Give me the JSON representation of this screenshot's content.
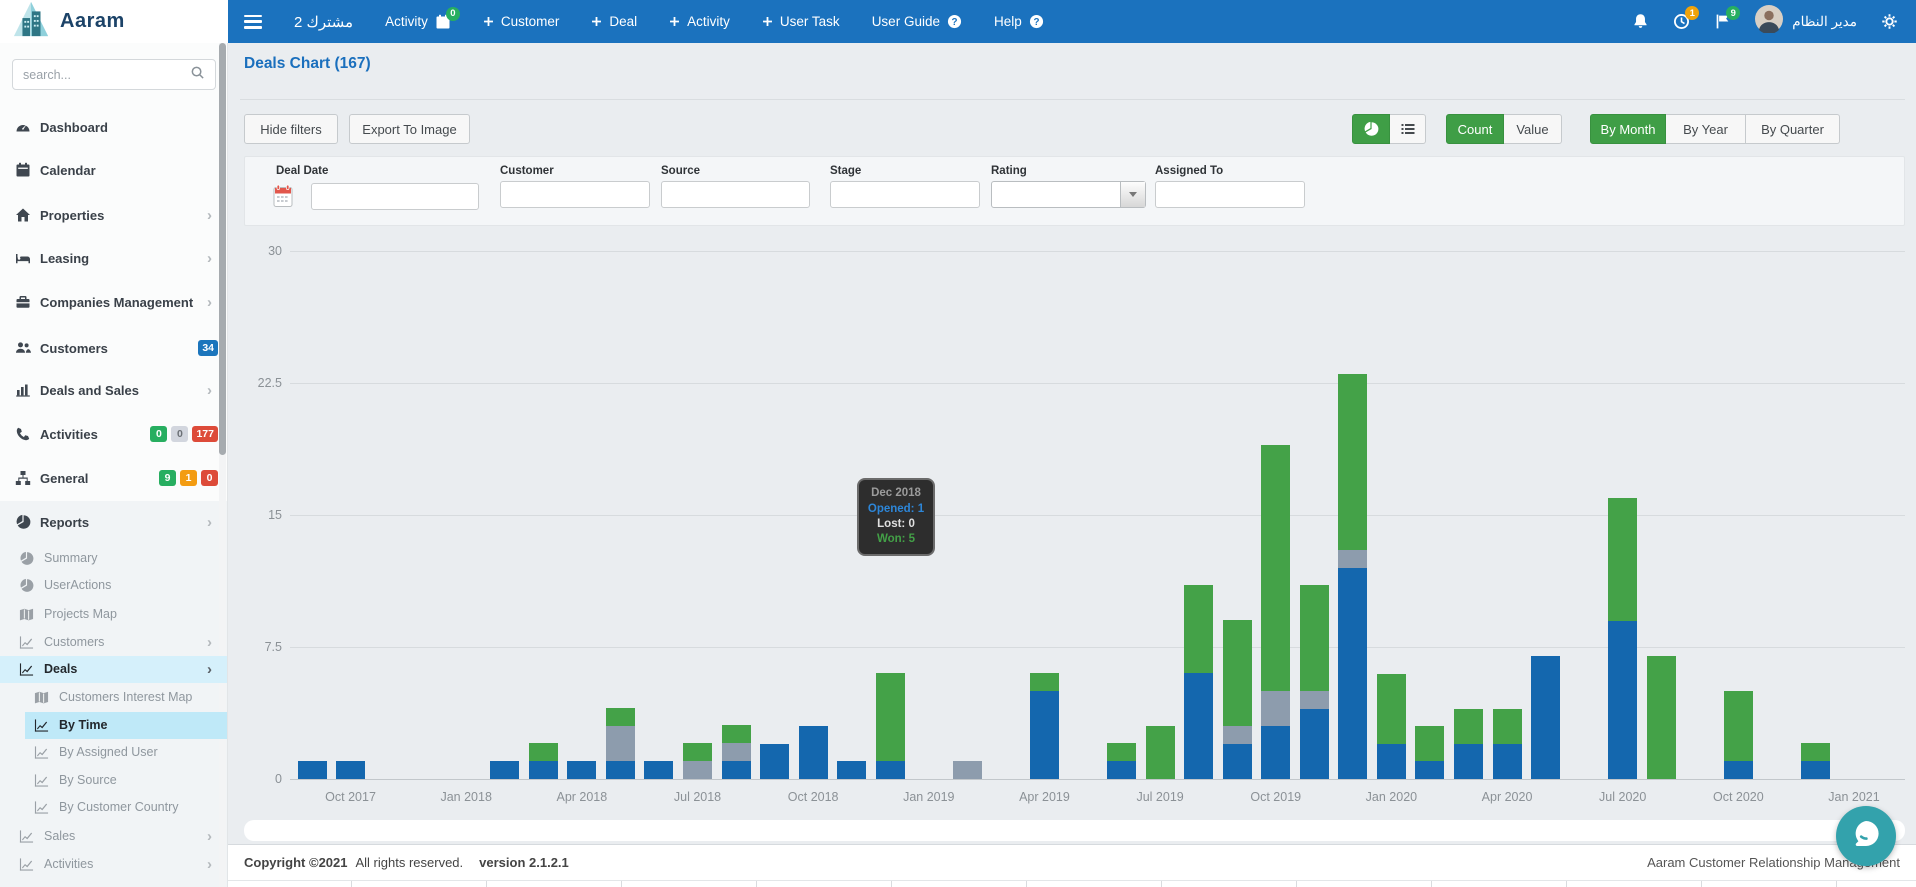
{
  "navbar": {
    "brand": "Aaram",
    "items": [
      {
        "label": "مشترك 2",
        "type": "text"
      },
      {
        "label": "Activity",
        "icon": "calendar-icon",
        "badge": "0",
        "badge_color": "#27ae60"
      },
      {
        "label": "Customer",
        "plus": true
      },
      {
        "label": "Deal",
        "plus": true
      },
      {
        "label": "Activity",
        "plus": true
      },
      {
        "label": "User Task",
        "plus": true
      },
      {
        "label": "User Guide",
        "help_icon": true
      },
      {
        "label": "Help",
        "help_icon": true
      }
    ],
    "right": [
      {
        "icon": "bell-icon"
      },
      {
        "icon": "clock-icon",
        "badge": "1",
        "badge_color": "#f0a30a"
      },
      {
        "icon": "flag-icon",
        "badge": "9",
        "badge_color": "#27ae60"
      },
      {
        "type": "user",
        "label": "مدير النظام"
      },
      {
        "icon": "gears-icon"
      }
    ]
  },
  "sidebar": {
    "search_placeholder": "search...",
    "items": [
      {
        "label": "Dashboard",
        "icon": "gauge-icon"
      },
      {
        "label": "Calendar",
        "icon": "calendar-icon"
      },
      {
        "label": "Properties",
        "icon": "home-icon",
        "chevron": true
      },
      {
        "label": "Leasing",
        "icon": "bed-icon",
        "chevron": true
      },
      {
        "label": "Companies Management",
        "icon": "briefcase-icon",
        "chevron": true
      },
      {
        "label": "Customers",
        "icon": "users-icon",
        "badges": [
          {
            "text": "34",
            "color": "#1b75bc"
          }
        ]
      },
      {
        "label": "Deals and Sales",
        "icon": "column-chart-icon",
        "chevron": true
      },
      {
        "label": "Activities",
        "icon": "phone-icon",
        "badges": [
          {
            "text": "0",
            "color": "#27ae60"
          },
          {
            "text": "0",
            "color": "#d2d6de",
            "dark": true
          },
          {
            "text": "177",
            "color": "#dd4b39"
          }
        ]
      },
      {
        "label": "General",
        "icon": "sitemap-icon",
        "badges": [
          {
            "text": "9",
            "color": "#27ae60"
          },
          {
            "text": "1",
            "color": "#f39c12"
          },
          {
            "text": "0",
            "color": "#dd4b39"
          }
        ]
      },
      {
        "label": "Reports",
        "icon": "pie-icon",
        "chevron": true
      }
    ],
    "report_children": [
      {
        "label": "Summary",
        "icon": "pie-icon"
      },
      {
        "label": "UserActions",
        "icon": "pie-icon"
      },
      {
        "label": "Projects Map",
        "icon": "map-icon"
      },
      {
        "label": "Customers",
        "icon": "line-chart-icon",
        "chevron": true
      },
      {
        "label": "Deals",
        "icon": "line-chart-icon",
        "chevron": true,
        "active": "deals"
      },
      {
        "label": "Customers Interest Map",
        "icon": "map-icon",
        "level": 2
      },
      {
        "label": "By Time",
        "icon": "line-chart-icon",
        "level": 2,
        "active": "bytime"
      },
      {
        "label": "By Assigned User",
        "icon": "line-chart-icon",
        "level": 2
      },
      {
        "label": "By Source",
        "icon": "line-chart-icon",
        "level": 2
      },
      {
        "label": "By Customer Country",
        "icon": "line-chart-icon",
        "level": 2
      },
      {
        "label": "Sales",
        "icon": "line-chart-icon",
        "chevron": true
      },
      {
        "label": "Activities",
        "icon": "line-chart-icon",
        "chevron": true
      }
    ]
  },
  "page": {
    "title": "Deals Chart (167)",
    "hide_filters": "Hide filters",
    "export_image": "Export To Image",
    "chart_type_buttons": [
      {
        "icon": "pie-icon",
        "active": true
      },
      {
        "icon": "list-icon",
        "active": false
      }
    ],
    "metric_buttons": [
      {
        "label": "Count",
        "active": true
      },
      {
        "label": "Value",
        "active": false
      }
    ],
    "period_buttons": [
      {
        "label": "By Month",
        "active": true
      },
      {
        "label": "By Year",
        "active": false
      },
      {
        "label": "By Quarter",
        "active": false
      }
    ]
  },
  "filters": {
    "fields": [
      {
        "label": "Deal Date",
        "type": "date",
        "value": ""
      },
      {
        "label": "Customer",
        "type": "text",
        "value": ""
      },
      {
        "label": "Source",
        "type": "text",
        "value": ""
      },
      {
        "label": "Stage",
        "type": "text",
        "value": ""
      },
      {
        "label": "Rating",
        "type": "select",
        "value": ""
      },
      {
        "label": "Assigned To",
        "type": "text",
        "value": ""
      }
    ]
  },
  "chart_data": {
    "type": "bar",
    "stacked": true,
    "title": "Deals Chart (167)",
    "x": [
      "Sep 2017",
      "Oct 2017",
      "Nov 2017",
      "Dec 2017",
      "Jan 2018",
      "Feb 2018",
      "Mar 2018",
      "Apr 2018",
      "May 2018",
      "Jun 2018",
      "Jul 2018",
      "Aug 2018",
      "Sep 2018",
      "Oct 2018",
      "Nov 2018",
      "Dec 2018",
      "Jan 2019",
      "Feb 2019",
      "Mar 2019",
      "Apr 2019",
      "May 2019",
      "Jun 2019",
      "Jul 2019",
      "Aug 2019",
      "Sep 2019",
      "Oct 2019",
      "Nov 2019",
      "Dec 2019",
      "Jan 2020",
      "Feb 2020",
      "Mar 2020",
      "Apr 2020",
      "May 2020",
      "Jun 2020",
      "Jul 2020",
      "Aug 2020",
      "Sep 2020",
      "Oct 2020",
      "Nov 2020",
      "Dec 2020",
      "Jan 2021"
    ],
    "series": [
      {
        "name": "Opened",
        "color": "#1467ae",
        "values": [
          1,
          1,
          0,
          0,
          0,
          1,
          1,
          1,
          1,
          1,
          0,
          1,
          2,
          3,
          1,
          1,
          0,
          0,
          0,
          5,
          0,
          1,
          0,
          6,
          2,
          3,
          4,
          12,
          2,
          1,
          2,
          2,
          7,
          0,
          9,
          0,
          0,
          1,
          0,
          1,
          0
        ]
      },
      {
        "name": "Lost",
        "color": "#8d9cad",
        "values": [
          0,
          0,
          0,
          0,
          0,
          0,
          0,
          0,
          2,
          0,
          1,
          1,
          0,
          0,
          0,
          0,
          0,
          1,
          0,
          0,
          0,
          0,
          0,
          0,
          1,
          2,
          1,
          1,
          0,
          0,
          0,
          0,
          0,
          0,
          0,
          0,
          0,
          0,
          0,
          0,
          0
        ]
      },
      {
        "name": "Won",
        "color": "#44a248",
        "values": [
          0,
          0,
          0,
          0,
          0,
          0,
          1,
          0,
          1,
          0,
          1,
          1,
          0,
          0,
          0,
          5,
          0,
          0,
          0,
          1,
          0,
          1,
          3,
          5,
          6,
          14,
          6,
          10,
          4,
          2,
          2,
          2,
          0,
          0,
          7,
          7,
          0,
          4,
          0,
          1,
          0
        ]
      }
    ],
    "y_ticks": [
      30,
      22.5,
      15,
      7.5,
      0
    ],
    "y_tick_labels": [
      "30",
      "22.5",
      "15",
      "7.5",
      "0"
    ],
    "x_ticks": [
      {
        "index": 1,
        "label": "Oct 2017"
      },
      {
        "index": 4,
        "label": "Jan 2018"
      },
      {
        "index": 7,
        "label": "Apr 2018"
      },
      {
        "index": 10,
        "label": "Jul 2018"
      },
      {
        "index": 13,
        "label": "Oct 2018"
      },
      {
        "index": 16,
        "label": "Jan 2019"
      },
      {
        "index": 19,
        "label": "Apr 2019"
      },
      {
        "index": 22,
        "label": "Jul 2019"
      },
      {
        "index": 25,
        "label": "Oct 2019"
      },
      {
        "index": 28,
        "label": "Jan 2020"
      },
      {
        "index": 31,
        "label": "Apr 2020"
      },
      {
        "index": 34,
        "label": "Jul 2020"
      },
      {
        "index": 37,
        "label": "Oct 2020"
      },
      {
        "index": 40,
        "label": "Jan 2021"
      }
    ],
    "ylim": [
      0,
      30
    ],
    "grid": true,
    "legend_position": "none"
  },
  "tooltip": {
    "title": "Dec 2018",
    "lines": [
      {
        "text": "Opened: 1",
        "color": "#2d86d8"
      },
      {
        "text": "Lost: 0",
        "color": "#e0e0e0"
      },
      {
        "text": "Won: 5",
        "color": "#43a047"
      }
    ]
  },
  "footer": {
    "copyright": "Copyright ©2021",
    "rights": "All rights reserved.",
    "version": "version 2.1.2.1",
    "right": "Aaram Customer Relationship Management"
  },
  "colors": {
    "navbar": "#1b72be",
    "active_green": "#3f9e46",
    "bar_opened": "#1467ae",
    "bar_lost": "#8d9cad",
    "bar_won": "#44a248",
    "title_blue": "#1a6fbd"
  }
}
